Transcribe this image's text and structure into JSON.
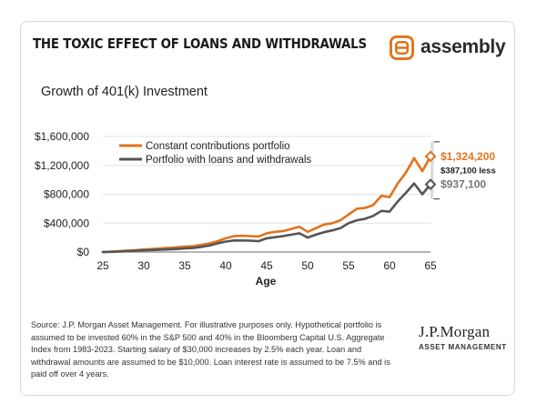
{
  "headline": "THE TOXIC EFFECT OF LOANS AND WITHDRAWALS",
  "brand": {
    "name": "assembly",
    "icon": "assembly-logo-icon",
    "color": "#e0731d"
  },
  "footnote": "Source: J.P. Morgan Asset Management. For illustrative purposes only. Hypothetical portfolio is assumed to be invested 60% in the S&P 500 and 40% in the Bloomberg Capital U.S. Aggregate Index from 1983-2023. Starting salary of $30,000 increases by 2.5% each year. Loan and withdrawal amounts are assumed to be $10,000. Loan interest rate is assumed to be 7.5% and is paid off over 4 years.",
  "publisher": {
    "name": "J.P.Morgan",
    "sub": "ASSET MANAGEMENT"
  },
  "chart_data": {
    "type": "line",
    "title": "Growth of 401(k) Investment",
    "xlabel": "Age",
    "ylabel": "",
    "xlim": [
      25,
      65
    ],
    "ylim": [
      0,
      1600000
    ],
    "x_ticks": [
      25,
      30,
      35,
      40,
      45,
      50,
      55,
      60,
      65
    ],
    "y_ticks": [
      0,
      400000,
      800000,
      1200000,
      1600000
    ],
    "y_tick_labels": [
      "$0",
      "$400,000",
      "$800,000",
      "$1,200,000",
      "$1,600,000"
    ],
    "grid": "horizontal",
    "legend_position": "top-left",
    "series": [
      {
        "name": "Constant contributions portfolio",
        "color": "#e0731d",
        "x": [
          25,
          26,
          27,
          28,
          29,
          30,
          31,
          32,
          33,
          34,
          35,
          36,
          37,
          38,
          39,
          40,
          41,
          42,
          43,
          44,
          45,
          46,
          47,
          48,
          49,
          50,
          51,
          52,
          53,
          54,
          55,
          56,
          57,
          58,
          59,
          60,
          61,
          62,
          63,
          64,
          65
        ],
        "y": [
          0,
          5000,
          12000,
          20000,
          27000,
          35000,
          42000,
          50000,
          58000,
          66000,
          75000,
          80000,
          100000,
          120000,
          150000,
          190000,
          220000,
          225000,
          220000,
          215000,
          260000,
          280000,
          290000,
          320000,
          350000,
          280000,
          330000,
          380000,
          400000,
          440000,
          520000,
          600000,
          610000,
          650000,
          780000,
          760000,
          950000,
          1100000,
          1300000,
          1120000,
          1324200
        ],
        "end_label": "$1,324,200"
      },
      {
        "name": "Portfolio with loans and withdrawals",
        "color": "#555555",
        "x": [
          25,
          26,
          27,
          28,
          29,
          30,
          31,
          32,
          33,
          34,
          35,
          36,
          37,
          38,
          39,
          40,
          41,
          42,
          43,
          44,
          45,
          46,
          47,
          48,
          49,
          50,
          51,
          52,
          53,
          54,
          55,
          56,
          57,
          58,
          59,
          60,
          61,
          62,
          63,
          64,
          65
        ],
        "y": [
          0,
          3000,
          8000,
          13000,
          18000,
          24000,
          28000,
          33000,
          37000,
          42000,
          50000,
          55000,
          70000,
          90000,
          120000,
          145000,
          160000,
          160000,
          158000,
          150000,
          190000,
          205000,
          220000,
          240000,
          260000,
          200000,
          240000,
          275000,
          300000,
          330000,
          400000,
          440000,
          460000,
          500000,
          570000,
          560000,
          700000,
          820000,
          950000,
          800000,
          937100
        ],
        "end_label": "$937,100"
      }
    ],
    "annotation": "$387,100 less"
  }
}
